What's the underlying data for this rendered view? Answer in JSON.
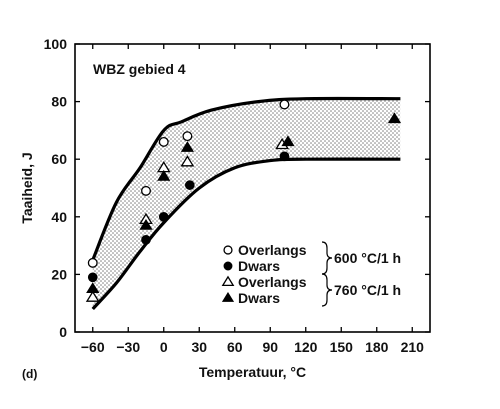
{
  "chart_data": {
    "type": "scatter",
    "title": "",
    "panel_label": "(d)",
    "annotation": "WBZ gebied 4",
    "xlabel": "Temperatuur, °C",
    "ylabel": "Taaiheid, J",
    "xlim": [
      -75,
      225
    ],
    "ylim": [
      0,
      100
    ],
    "xticks": [
      -60,
      -30,
      0,
      30,
      60,
      90,
      120,
      150,
      180,
      210
    ],
    "yticks": [
      0,
      20,
      40,
      60,
      80,
      100
    ],
    "grid": false,
    "legend_placement": "bottom-right",
    "band": {
      "upper": [
        [
          -60,
          25
        ],
        [
          -40,
          45
        ],
        [
          -20,
          57
        ],
        [
          0,
          70
        ],
        [
          15,
          73
        ],
        [
          40,
          77
        ],
        [
          80,
          80
        ],
        [
          120,
          81
        ],
        [
          200,
          81
        ]
      ],
      "lower": [
        [
          -60,
          8
        ],
        [
          -40,
          17
        ],
        [
          -20,
          28
        ],
        [
          0,
          38
        ],
        [
          30,
          50
        ],
        [
          60,
          57
        ],
        [
          90,
          59.5
        ],
        [
          120,
          60
        ],
        [
          200,
          60
        ]
      ]
    },
    "series": [
      {
        "name": "Overlangs",
        "marker": "open-circle",
        "group": "600 °C/1 h",
        "x": [
          -60,
          -15,
          0,
          20,
          102
        ],
        "y": [
          24,
          49,
          66,
          68,
          79
        ]
      },
      {
        "name": "Dwars",
        "marker": "filled-circle",
        "group": "600 °C/1 h",
        "x": [
          -60,
          -15,
          0,
          22,
          102
        ],
        "y": [
          19,
          32,
          40,
          51,
          61
        ]
      },
      {
        "name": "Overlangs",
        "marker": "open-triangle",
        "group": "760 °C/1 h",
        "x": [
          -60,
          -15,
          0,
          20,
          100
        ],
        "y": [
          12,
          39,
          57,
          59,
          65
        ]
      },
      {
        "name": "Dwars",
        "marker": "filled-triangle",
        "group": "760 °C/1 h",
        "x": [
          -60,
          -15,
          0,
          20,
          105,
          195
        ],
        "y": [
          15,
          37,
          54,
          64,
          66,
          74
        ]
      }
    ],
    "legend": {
      "entries": [
        {
          "label": "Overlangs",
          "marker": "open-circle"
        },
        {
          "label": "Dwars",
          "marker": "filled-circle"
        },
        {
          "label": "Overlangs",
          "marker": "open-triangle"
        },
        {
          "label": "Dwars",
          "marker": "filled-triangle"
        }
      ],
      "groups": [
        "600 °C/1 h",
        "760 °C/1 h"
      ]
    }
  }
}
